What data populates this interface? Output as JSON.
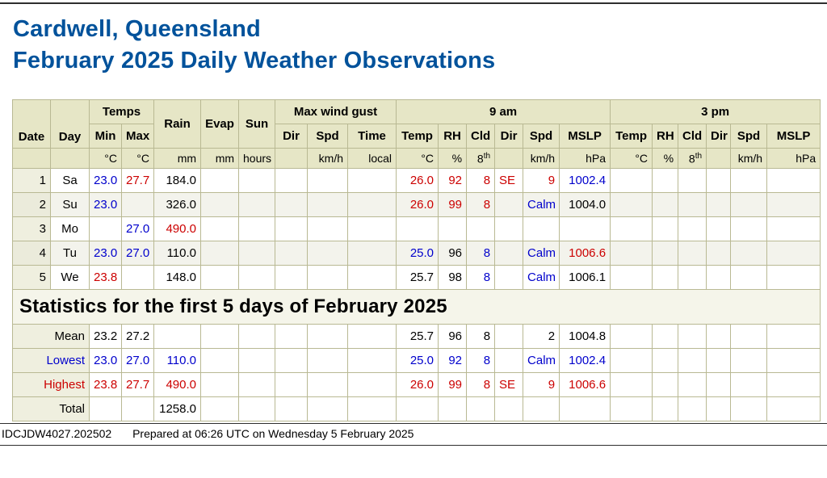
{
  "title": {
    "line1": "Cardwell, Queensland",
    "line2": "February 2025 Daily Weather Observations"
  },
  "header": {
    "date": "Date",
    "day": "Day",
    "temps": "Temps",
    "min": "Min",
    "max": "Max",
    "rain": "Rain",
    "evap": "Evap",
    "sun": "Sun",
    "gust": "Max wind gust",
    "dir": "Dir",
    "spd": "Spd",
    "time": "Time",
    "nine_am": "9 am",
    "three_pm": "3 pm",
    "temp": "Temp",
    "rh": "RH",
    "cld": "Cld",
    "mslp": "MSLP"
  },
  "units": {
    "degc": "°C",
    "pct": "%",
    "mm": "mm",
    "hours": "hours",
    "kmh": "km/h",
    "local": "local",
    "hpa": "hPa",
    "okta_base": "8",
    "okta_sup": "th"
  },
  "colors": {
    "lowest": "#0000cc",
    "highest": "#cc0000",
    "title_blue": "#00529b"
  },
  "rows": [
    {
      "date": "1",
      "day": "Sa",
      "cells": [
        {
          "v": "23.0",
          "c": "lo"
        },
        {
          "v": "27.7",
          "c": "hi"
        },
        "184.0",
        "",
        "",
        "",
        "",
        "",
        {
          "v": "26.0",
          "c": "hi"
        },
        {
          "v": "92",
          "c": "hi"
        },
        {
          "v": "8",
          "c": "hi"
        },
        {
          "v": "SE",
          "c": "hi"
        },
        {
          "v": "9",
          "c": "hi"
        },
        {
          "v": "1002.4",
          "c": "lo"
        },
        "",
        "",
        "",
        "",
        "",
        ""
      ]
    },
    {
      "date": "2",
      "day": "Su",
      "cells": [
        {
          "v": "23.0",
          "c": "lo"
        },
        "",
        "326.0",
        "",
        "",
        "",
        "",
        "",
        {
          "v": "26.0",
          "c": "hi"
        },
        {
          "v": "99",
          "c": "hi"
        },
        {
          "v": "8",
          "c": "hi"
        },
        "",
        {
          "v": "Calm",
          "c": "lo"
        },
        "1004.0",
        "",
        "",
        "",
        "",
        "",
        ""
      ]
    },
    {
      "date": "3",
      "day": "Mo",
      "cells": [
        "",
        {
          "v": "27.0",
          "c": "lo"
        },
        {
          "v": "490.0",
          "c": "hi"
        },
        "",
        "",
        "",
        "",
        "",
        "",
        "",
        "",
        "",
        "",
        "",
        "",
        "",
        "",
        "",
        "",
        ""
      ]
    },
    {
      "date": "4",
      "day": "Tu",
      "cells": [
        {
          "v": "23.0",
          "c": "lo"
        },
        {
          "v": "27.0",
          "c": "lo"
        },
        "110.0",
        "",
        "",
        "",
        "",
        "",
        {
          "v": "25.0",
          "c": "lo"
        },
        "96",
        {
          "v": "8",
          "c": "lo"
        },
        "",
        {
          "v": "Calm",
          "c": "lo"
        },
        {
          "v": "1006.6",
          "c": "hi"
        },
        "",
        "",
        "",
        "",
        "",
        ""
      ]
    },
    {
      "date": "5",
      "day": "We",
      "cells": [
        {
          "v": "23.8",
          "c": "hi"
        },
        "",
        "148.0",
        "",
        "",
        "",
        "",
        "",
        "25.7",
        "98",
        {
          "v": "8",
          "c": "lo"
        },
        "",
        {
          "v": "Calm",
          "c": "lo"
        },
        "1006.1",
        "",
        "",
        "",
        "",
        "",
        ""
      ]
    }
  ],
  "stats": {
    "banner": "Statistics for the first 5 days of February 2025",
    "rows": [
      {
        "label": "Mean",
        "cls": "",
        "cells": [
          "23.2",
          "27.2",
          "",
          "",
          "",
          "",
          "",
          "",
          "25.7",
          "96",
          "8",
          "",
          "2",
          "1004.8",
          "",
          "",
          "",
          "",
          "",
          ""
        ]
      },
      {
        "label": "Lowest",
        "cls": "lowrow",
        "cells": [
          "23.0",
          "27.0",
          "110.0",
          "",
          "",
          "",
          "",
          "",
          "25.0",
          "92",
          "8",
          "",
          "Calm",
          "1002.4",
          "",
          "",
          "",
          "",
          "",
          ""
        ]
      },
      {
        "label": "Highest",
        "cls": "hirow",
        "cells": [
          "23.8",
          "27.7",
          "490.0",
          "",
          "",
          "",
          "",
          "",
          "26.0",
          "99",
          "8",
          "SE",
          "9",
          "1006.6",
          "",
          "",
          "",
          "",
          "",
          ""
        ]
      },
      {
        "label": "Total",
        "cls": "",
        "cells": [
          "",
          "",
          "1258.0",
          "",
          "",
          "",
          "",
          "",
          "",
          "",
          "",
          "",
          "",
          "",
          "",
          "",
          "",
          "",
          "",
          ""
        ]
      }
    ]
  },
  "footer": {
    "product_id": "IDCJDW4027.202502",
    "prepared": "Prepared at 06:26 UTC on Wednesday 5 February 2025"
  }
}
